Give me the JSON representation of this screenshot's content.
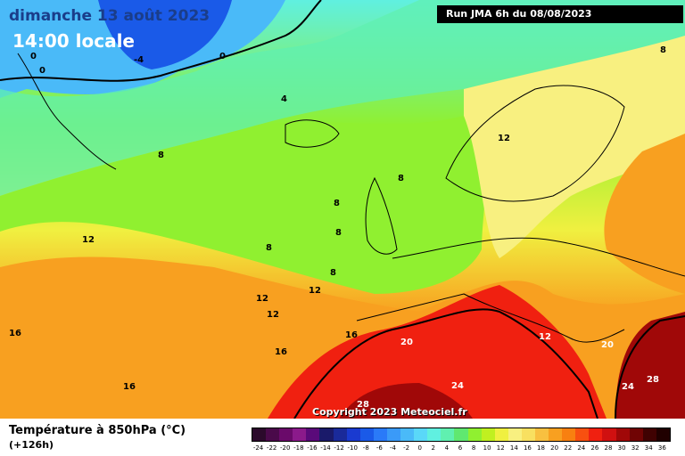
{
  "header": {
    "date": "dimanche 13 août 2023",
    "time": "14:00 locale",
    "run": "Run JMA 6h du 08/08/2023"
  },
  "footer": {
    "title": "Température à 850hPa (°C)",
    "lead": "(+126h)",
    "copyright": "Copyright 2023 Meteociel.fr"
  },
  "contour_labels": [
    "0",
    "0",
    "-4",
    "0",
    "4",
    "8",
    "8",
    "8",
    "8",
    "12",
    "12",
    "8",
    "8",
    "12",
    "12",
    "12",
    "16",
    "16",
    "16",
    "16",
    "20",
    "20",
    "24",
    "24",
    "28",
    "28",
    "12",
    "8"
  ],
  "legend": {
    "labels": [
      "-24",
      "-22",
      "-20",
      "-18",
      "-16",
      "-14",
      "-12",
      "-10",
      "-8",
      "-6",
      "-4",
      "-2",
      "0",
      "2",
      "4",
      "6",
      "8",
      "10",
      "12",
      "14",
      "16",
      "18",
      "20",
      "22",
      "24",
      "26",
      "28",
      "30",
      "32",
      "34",
      "36"
    ],
    "colors": [
      "#2b0a2b",
      "#4a0a4a",
      "#6a0a6a",
      "#8b1a8b",
      "#5a0a7a",
      "#1a1a6a",
      "#1a2a9a",
      "#1a3ad0",
      "#1a5ae8",
      "#2a7af8",
      "#3a9af8",
      "#4abaf8",
      "#5ad8f8",
      "#60f0e0",
      "#60f0b0",
      "#60e870",
      "#90f030",
      "#c0f020",
      "#f0f040",
      "#f8f080",
      "#f8e060",
      "#f8c040",
      "#f8a020",
      "#f88010",
      "#f85010",
      "#f02010",
      "#d01010",
      "#a00808",
      "#700404",
      "#400202",
      "#200000"
    ]
  }
}
